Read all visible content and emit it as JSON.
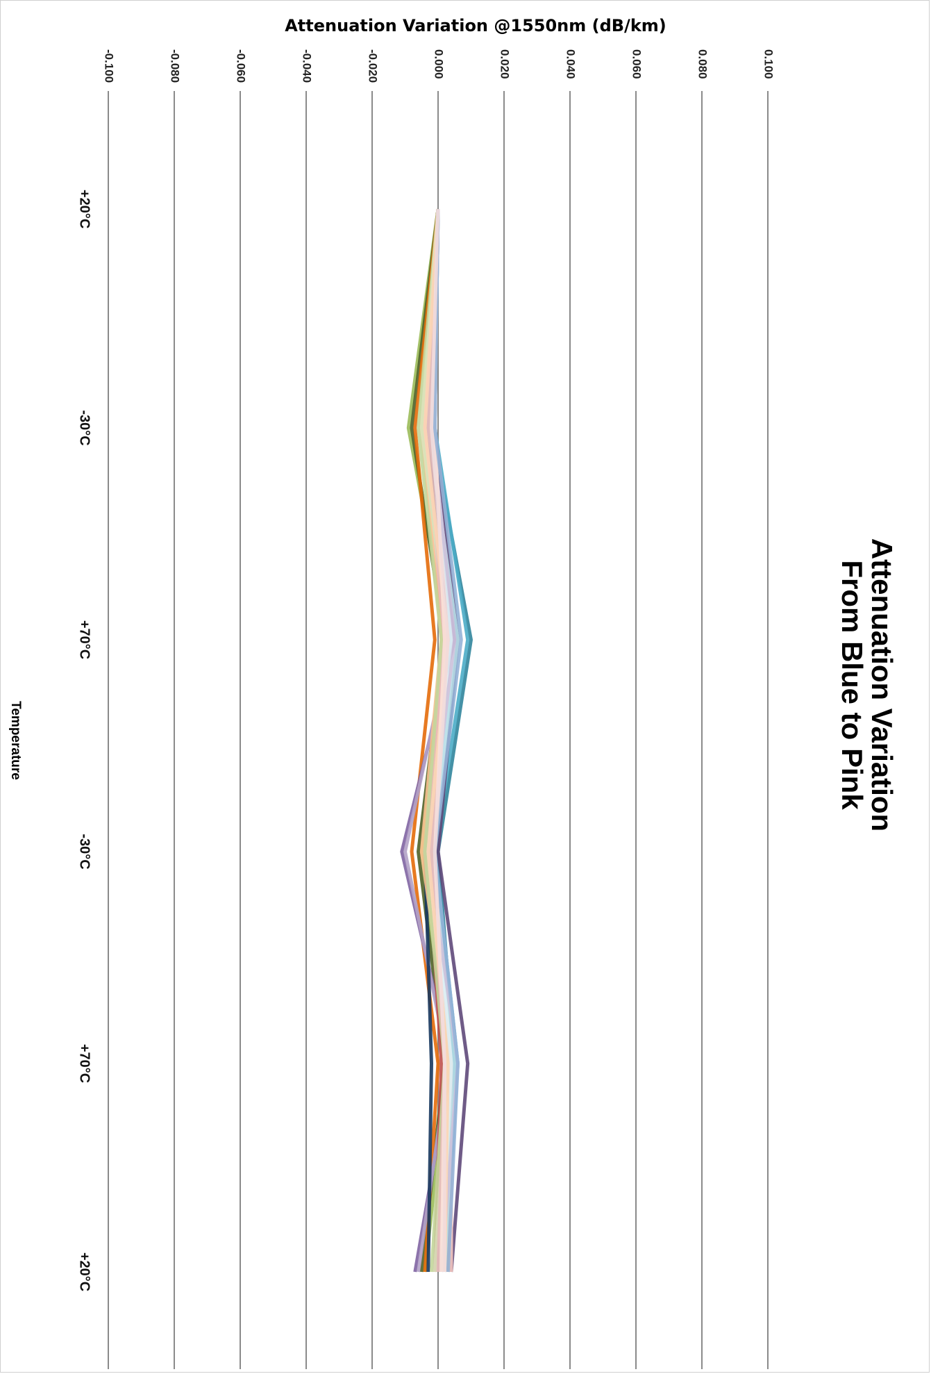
{
  "chart_data": {
    "type": "line",
    "title_lines": [
      "Attenuation Variation",
      "From Blue to Pink"
    ],
    "ylabel": "Attenuation Variation @1550nm (dB/km)",
    "xlabel": "Temperature",
    "categories": [
      "+20°C",
      "-30°C",
      "+70°C",
      "-30°C",
      "+70°C",
      "+20°C"
    ],
    "y_ticks": [
      "-0.100",
      "-0.080",
      "-0.060",
      "-0.040",
      "-0.020",
      "0.000",
      "0.020",
      "0.040",
      "0.060",
      "0.080",
      "0.100"
    ],
    "ylim": [
      -0.1,
      0.1
    ],
    "grid": true,
    "rotation": "chart rotated 90 degrees clockwise",
    "series": [
      {
        "color": "#9bbb59",
        "values": [
          0.0,
          -0.009,
          0.003,
          -0.005,
          0.003,
          -0.004
        ]
      },
      {
        "color": "#4f6228",
        "values": [
          0.0,
          -0.008,
          0.002,
          -0.006,
          0.002,
          -0.005
        ]
      },
      {
        "color": "#e46c0a",
        "values": [
          0.0,
          -0.007,
          -0.001,
          -0.008,
          0.0,
          -0.004
        ]
      },
      {
        "color": "#31859c",
        "values": [
          0.0,
          -0.002,
          0.01,
          0.0,
          0.005,
          0.003
        ]
      },
      {
        "color": "#4bacc6",
        "values": [
          0.0,
          -0.001,
          0.009,
          -0.001,
          0.006,
          0.002
        ]
      },
      {
        "color": "#5f497a",
        "values": [
          0.0,
          -0.001,
          0.006,
          0.0,
          0.009,
          0.004
        ]
      },
      {
        "color": "#8064a2",
        "values": [
          0.0,
          -0.003,
          0.005,
          -0.011,
          0.004,
          -0.007
        ]
      },
      {
        "color": "#b2a2c7",
        "values": [
          0.0,
          -0.002,
          0.004,
          -0.01,
          0.003,
          -0.006
        ]
      },
      {
        "color": "#17375e",
        "values": [
          0.0,
          -0.003,
          0.003,
          -0.004,
          -0.002,
          -0.003
        ]
      },
      {
        "color": "#c0504d",
        "values": [
          0.0,
          -0.004,
          0.002,
          -0.003,
          0.001,
          -0.001
        ]
      },
      {
        "color": "#fac090",
        "values": [
          0.0,
          -0.005,
          0.001,
          -0.005,
          0.004,
          0.003
        ]
      },
      {
        "color": "#f2c5c0",
        "values": [
          0.0,
          -0.004,
          0.002,
          -0.004,
          0.004,
          0.004
        ]
      },
      {
        "color": "#c3d69b",
        "values": [
          0.0,
          -0.006,
          0.001,
          -0.004,
          0.002,
          -0.002
        ]
      },
      {
        "color": "#d7e4bd",
        "values": [
          0.0,
          -0.005,
          0.003,
          -0.003,
          0.003,
          -0.001
        ]
      },
      {
        "color": "#b7dee8",
        "values": [
          0.0,
          -0.003,
          0.006,
          -0.002,
          0.005,
          0.002
        ]
      },
      {
        "color": "#dbeef4",
        "values": [
          0.0,
          -0.002,
          0.004,
          -0.002,
          0.004,
          0.001
        ]
      },
      {
        "color": "#ccc1da",
        "values": [
          0.0,
          -0.002,
          0.005,
          -0.003,
          0.006,
          0.001
        ]
      },
      {
        "color": "#e6b9b8",
        "values": [
          0.0,
          -0.003,
          0.002,
          -0.002,
          0.002,
          0.0
        ]
      },
      {
        "color": "#fcd5b5",
        "values": [
          0.0,
          -0.004,
          0.003,
          -0.003,
          0.003,
          0.002
        ]
      },
      {
        "color": "#f9e0d8",
        "values": [
          0.0,
          -0.001,
          0.002,
          -0.001,
          0.002,
          0.001
        ]
      },
      {
        "color": "#95b3d7",
        "values": [
          0.0,
          -0.001,
          0.007,
          -0.001,
          0.006,
          0.003
        ]
      },
      {
        "color": "#f2dcdb",
        "values": [
          0.0,
          -0.002,
          0.003,
          -0.001,
          0.002,
          0.002
        ]
      }
    ]
  }
}
